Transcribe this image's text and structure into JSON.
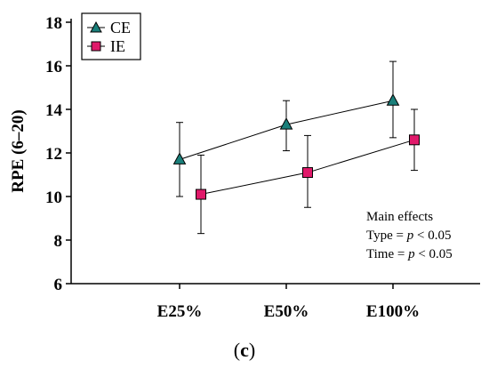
{
  "chart_data": {
    "type": "line",
    "categories": [
      "E25%",
      "E50%",
      "E100%"
    ],
    "ylabel": "RPE (6–20)",
    "ylim": [
      6,
      18
    ],
    "yticks": [
      6,
      8,
      10,
      12,
      14,
      16,
      18
    ],
    "grid": false,
    "legend_position": "top-left",
    "series": [
      {
        "name": "CE",
        "marker": "triangle",
        "color": "#1a7f7a",
        "values": [
          11.7,
          13.3,
          14.4
        ],
        "err_low": [
          10.0,
          12.1,
          12.7
        ],
        "err_high": [
          13.4,
          14.4,
          16.2
        ]
      },
      {
        "name": "IE",
        "marker": "square",
        "color": "#e0196a",
        "values": [
          10.1,
          11.1,
          12.6
        ],
        "err_low": [
          8.3,
          9.5,
          11.2
        ],
        "err_high": [
          11.9,
          12.8,
          14.0
        ]
      }
    ],
    "annotation": {
      "line1": "Main effects",
      "line2_prefix": "Type = ",
      "line2_italic": "p",
      "line2_suffix": " < 0.05",
      "line3_prefix": "Time = ",
      "line3_italic": "p",
      "line3_suffix": " < 0.05"
    },
    "panel_label": {
      "open": "(",
      "letter": "c",
      "close": ")"
    }
  }
}
